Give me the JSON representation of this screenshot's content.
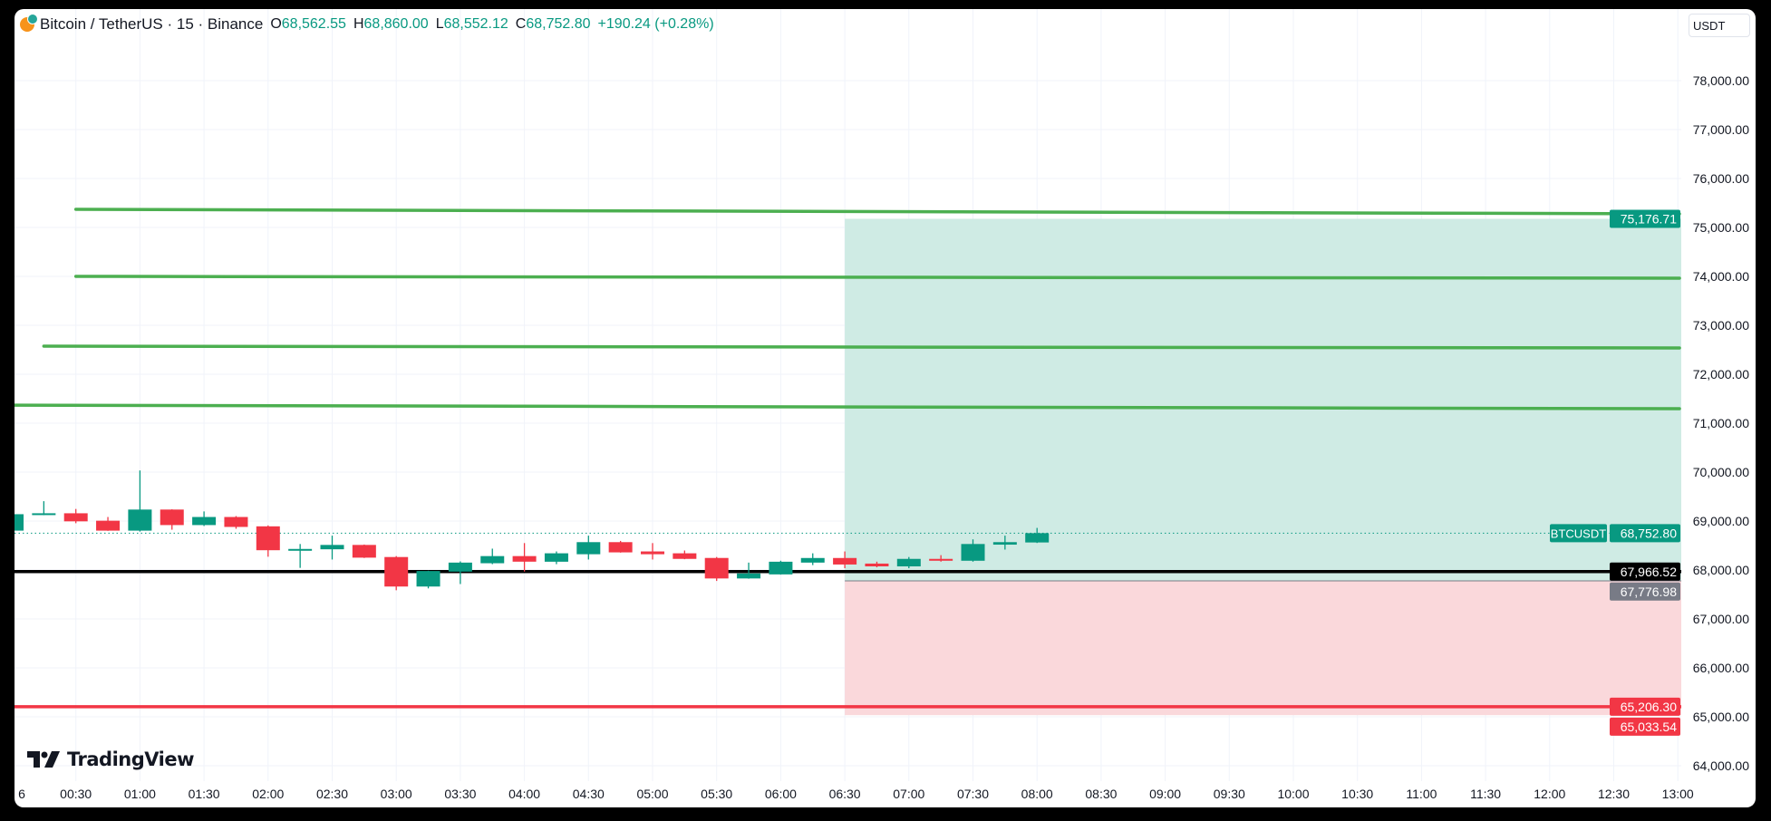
{
  "header": {
    "symbol": "Bitcoin / TetherUS · 15 · Binance",
    "open_label": "O",
    "open": "68,562.55",
    "high_label": "H",
    "high": "68,860.00",
    "low_label": "L",
    "low": "68,552.12",
    "close_label": "C",
    "close": "68,752.80",
    "change": "+190.24 (+0.28%)"
  },
  "currency_button": "USDT",
  "logo_text": "TradingView",
  "colors": {
    "up": "#089981",
    "down": "#f23645",
    "trendline": "#4caf50",
    "profit_zone": "#cfebe4",
    "loss_zone": "#fad8db",
    "background": "#ffffff",
    "grid": "#f0f3fa"
  },
  "chart_data": {
    "type": "candlestick",
    "interval_minutes": 15,
    "ylim": [
      63700,
      78700
    ],
    "y_ticks": [
      "78,000.00",
      "77,000.00",
      "76,000.00",
      "75,000.00",
      "74,000.00",
      "73,000.00",
      "72,000.00",
      "71,000.00",
      "70,000.00",
      "69,000.00",
      "68,000.00",
      "67,000.00",
      "66,000.00",
      "65,000.00",
      "64,000.00"
    ],
    "y_tick_values": [
      78000,
      77000,
      76000,
      75000,
      74000,
      73000,
      72000,
      71000,
      70000,
      69000,
      68000,
      67000,
      66000,
      65000,
      64000
    ],
    "x_ticks": [
      "6",
      "00:30",
      "01:00",
      "01:30",
      "02:00",
      "02:30",
      "03:00",
      "03:30",
      "04:00",
      "04:30",
      "05:00",
      "05:30",
      "06:00",
      "06:30",
      "07:00",
      "07:30",
      "08:00",
      "08:30",
      "09:00",
      "09:30",
      "10:00",
      "10:30",
      "11:00",
      "11:30",
      "12:00",
      "12:30",
      "13:00"
    ],
    "candles": [
      {
        "t": "00:00",
        "o": 68804,
        "h": 69145,
        "l": 68800,
        "c": 69140
      },
      {
        "t": "00:15",
        "o": 69127,
        "h": 69406,
        "l": 69120,
        "c": 69159
      },
      {
        "t": "00:30",
        "o": 69159,
        "h": 69247,
        "l": 68956,
        "c": 68994
      },
      {
        "t": "00:45",
        "o": 69007,
        "h": 69083,
        "l": 68800,
        "c": 68804
      },
      {
        "t": "01:00",
        "o": 68804,
        "h": 70034,
        "l": 68785,
        "c": 69235
      },
      {
        "t": "01:15",
        "o": 69235,
        "h": 69240,
        "l": 68823,
        "c": 68918
      },
      {
        "t": "01:30",
        "o": 68918,
        "h": 69197,
        "l": 68899,
        "c": 69083
      },
      {
        "t": "01:45",
        "o": 69083,
        "h": 69102,
        "l": 68842,
        "c": 68880
      },
      {
        "t": "02:00",
        "o": 68892,
        "h": 68911,
        "l": 68271,
        "c": 68404
      },
      {
        "t": "02:15",
        "o": 68420,
        "h": 68531,
        "l": 68043,
        "c": 68430
      },
      {
        "t": "02:30",
        "o": 68423,
        "h": 68702,
        "l": 68214,
        "c": 68512
      },
      {
        "t": "02:45",
        "o": 68512,
        "h": 68520,
        "l": 68245,
        "c": 68252
      },
      {
        "t": "03:00",
        "o": 68265,
        "h": 68284,
        "l": 67586,
        "c": 67662
      },
      {
        "t": "03:15",
        "o": 67662,
        "h": 67985,
        "l": 67624,
        "c": 67979
      },
      {
        "t": "03:30",
        "o": 67967,
        "h": 68176,
        "l": 67713,
        "c": 68151
      },
      {
        "t": "03:45",
        "o": 68138,
        "h": 68436,
        "l": 68119,
        "c": 68284
      },
      {
        "t": "04:00",
        "o": 68284,
        "h": 68550,
        "l": 67967,
        "c": 68170
      },
      {
        "t": "04:15",
        "o": 68169,
        "h": 68379,
        "l": 68119,
        "c": 68341
      },
      {
        "t": "04:30",
        "o": 68322,
        "h": 68702,
        "l": 68214,
        "c": 68569
      },
      {
        "t": "04:45",
        "o": 68569,
        "h": 68594,
        "l": 68355,
        "c": 68360
      },
      {
        "t": "05:00",
        "o": 68379,
        "h": 68550,
        "l": 68214,
        "c": 68322
      },
      {
        "t": "05:15",
        "o": 68341,
        "h": 68398,
        "l": 68220,
        "c": 68227
      },
      {
        "t": "05:30",
        "o": 68246,
        "h": 68265,
        "l": 67776,
        "c": 67827
      },
      {
        "t": "05:45",
        "o": 67827,
        "h": 68151,
        "l": 67822,
        "c": 67929
      },
      {
        "t": "06:00",
        "o": 67910,
        "h": 68189,
        "l": 67905,
        "c": 68169
      },
      {
        "t": "06:15",
        "o": 68151,
        "h": 68341,
        "l": 68100,
        "c": 68245
      },
      {
        "t": "06:30",
        "o": 68245,
        "h": 68379,
        "l": 68036,
        "c": 68112
      },
      {
        "t": "06:45",
        "o": 68131,
        "h": 68170,
        "l": 68055,
        "c": 68074
      },
      {
        "t": "07:00",
        "o": 68074,
        "h": 68265,
        "l": 68036,
        "c": 68227
      },
      {
        "t": "07:15",
        "o": 68227,
        "h": 68303,
        "l": 68170,
        "c": 68189
      },
      {
        "t": "07:30",
        "o": 68189,
        "h": 68626,
        "l": 68170,
        "c": 68531
      },
      {
        "t": "07:45",
        "o": 68518,
        "h": 68702,
        "l": 68417,
        "c": 68569
      },
      {
        "t": "08:00",
        "o": 68562.55,
        "h": 68860.0,
        "l": 68552.12,
        "c": 68752.8
      }
    ],
    "last_price": {
      "label": "BTCUSDT",
      "value": 68752.8,
      "text": "68,752.80"
    },
    "trendlines": [
      {
        "start": "00:30",
        "p_start": 75370,
        "p_end": 75278
      },
      {
        "start": "00:30",
        "p_start": 74000,
        "p_end": 73963
      },
      {
        "start": "00:15",
        "p_start": 72574,
        "p_end": 72537
      },
      {
        "start": "23:45",
        "p_start": 71370,
        "p_end": 71296
      }
    ],
    "horizontal_lines": [
      {
        "price": 67966.52,
        "text": "67,966.52",
        "color": "#000000"
      },
      {
        "price": 65206.3,
        "text": "65,206.30",
        "color": "#f23645"
      }
    ],
    "long_position": {
      "start": "06:30",
      "target": 75176.71,
      "target_text": "75,176.71",
      "entry": 67776.98,
      "entry_text": "67,776.98",
      "stop": 65033.54,
      "stop_text": "65,033.54"
    }
  }
}
